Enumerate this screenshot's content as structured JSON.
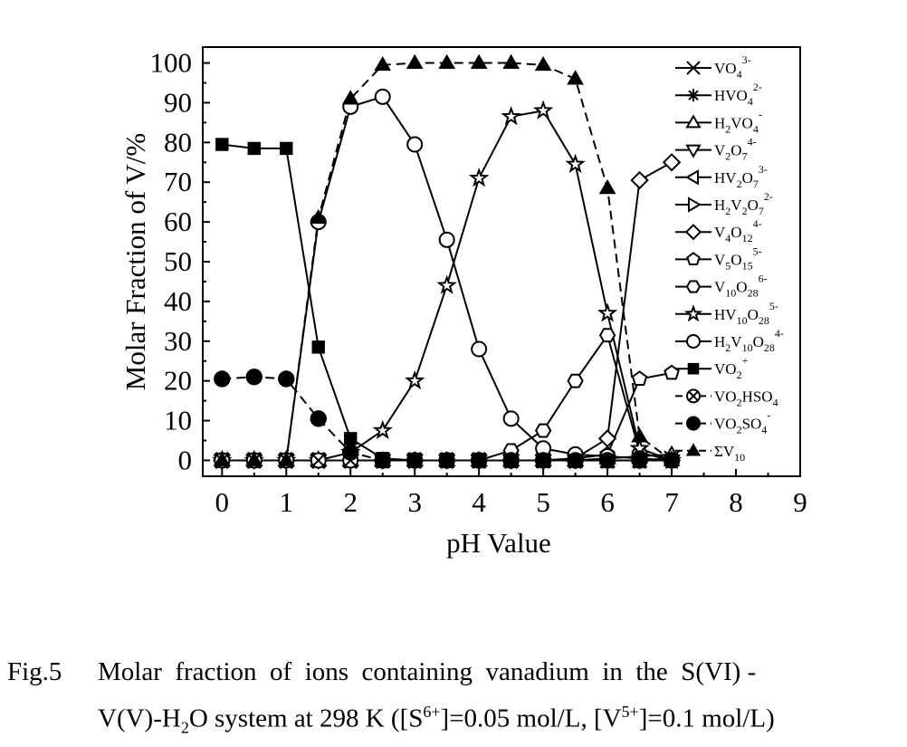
{
  "chart_data": {
    "type": "line",
    "xlabel": "pH Value",
    "ylabel": "Molar Fraction of V/%",
    "xlim": [
      -0.3,
      9
    ],
    "ylim": [
      -4,
      104
    ],
    "xticks": [
      "0",
      "1",
      "2",
      "3",
      "4",
      "5",
      "6",
      "7",
      "8",
      "9"
    ],
    "yticks": [
      "0",
      "10",
      "20",
      "30",
      "40",
      "50",
      "60",
      "70",
      "80",
      "90",
      "100"
    ],
    "grid": false,
    "legend_position": "right",
    "x": [
      0,
      0.5,
      1,
      1.5,
      2,
      2.5,
      3,
      3.5,
      4,
      4.5,
      5,
      5.5,
      6,
      6.5,
      7
    ],
    "series": [
      {
        "name": "VO4 3-",
        "legend": {
          "base": "VO",
          "sub1": "4",
          "sup": "3-"
        },
        "marker": "x",
        "line": "solid",
        "values": [
          0,
          0,
          0,
          0,
          0,
          0,
          0,
          0,
          0,
          0,
          0,
          0,
          0,
          0,
          0.5
        ]
      },
      {
        "name": "HVO4 2-",
        "legend": {
          "base": "HVO",
          "sub1": "4",
          "sup": "2-"
        },
        "marker": "asterisk",
        "line": "solid",
        "values": [
          0,
          0,
          0,
          0,
          0,
          0,
          0,
          0,
          0,
          0,
          0,
          0,
          0,
          0,
          0.5
        ]
      },
      {
        "name": "H2VO4 -",
        "legend": {
          "base": "H",
          "sub1": "2",
          "mid": "VO",
          "sub2": "4",
          "sup": "-"
        },
        "marker": "triangle-up",
        "line": "solid",
        "values": [
          0,
          0,
          0,
          0,
          0,
          0,
          0,
          0,
          0,
          0,
          0,
          0,
          0.5,
          1,
          1.5
        ]
      },
      {
        "name": "V2O7 4-",
        "legend": {
          "base": "V",
          "sub1": "2",
          "mid": "O",
          "sub2": "7",
          "sup": "4-"
        },
        "marker": "triangle-down",
        "line": "solid",
        "values": [
          0,
          0,
          0,
          0,
          0,
          0,
          0,
          0,
          0,
          0,
          0,
          0,
          0,
          0,
          0
        ]
      },
      {
        "name": "HV2O7 3-",
        "legend": {
          "base": "HV",
          "sub1": "2",
          "mid": "O",
          "sub2": "7",
          "sup": "3-"
        },
        "marker": "triangle-left",
        "line": "solid",
        "values": [
          0,
          0,
          0,
          0,
          0,
          0,
          0,
          0,
          0,
          0,
          0,
          0,
          0,
          0,
          0
        ]
      },
      {
        "name": "H2V2O7 2-",
        "legend": {
          "base": "H",
          "sub1": "2",
          "mid": "V",
          "sub2": "2",
          "tail": "O",
          "sub3": "7",
          "sup": "2-"
        },
        "marker": "triangle-right",
        "line": "solid",
        "values": [
          0,
          0,
          0,
          0,
          0,
          0,
          0,
          0,
          0,
          0,
          0,
          0,
          0,
          0,
          0
        ]
      },
      {
        "name": "V4O12 4-",
        "legend": {
          "base": "V",
          "sub1": "4",
          "mid": "O",
          "sub2": "12",
          "sup": "4-"
        },
        "marker": "diamond",
        "line": "solid",
        "values": [
          0,
          0,
          0,
          0,
          0,
          0,
          0,
          0,
          0,
          0,
          0,
          0.5,
          5.5,
          70.5,
          75
        ]
      },
      {
        "name": "V5O15 5-",
        "legend": {
          "base": "V",
          "sub1": "5",
          "mid": "O",
          "sub2": "15",
          "sup": "5-"
        },
        "marker": "pentagon",
        "line": "solid",
        "values": [
          0,
          0,
          0,
          0,
          0,
          0,
          0,
          0,
          0,
          0,
          0,
          0.5,
          1.5,
          20.5,
          22
        ]
      },
      {
        "name": "V10O28 6-",
        "legend": {
          "base": "V",
          "sub1": "10",
          "mid": "O",
          "sub2": "28",
          "sup": "6-"
        },
        "marker": "hexagon",
        "line": "solid",
        "values": [
          0,
          0,
          0,
          0,
          0,
          0,
          0,
          0,
          0,
          2.5,
          7.5,
          20,
          31.5,
          2,
          0
        ]
      },
      {
        "name": "HV10O28 5-",
        "legend": {
          "base": "HV",
          "sub1": "10",
          "mid": "O",
          "sub2": "28",
          "sup": "5-"
        },
        "marker": "star",
        "line": "solid",
        "values": [
          0,
          0,
          0,
          0,
          2,
          7.5,
          20,
          44,
          71,
          86.5,
          88,
          74.5,
          37,
          3,
          0
        ]
      },
      {
        "name": "H2V10O28 4-",
        "legend": {
          "base": "H",
          "sub1": "2",
          "mid": "V",
          "sub2": "10",
          "tail": "O",
          "sub3": "28",
          "sup": "4-"
        },
        "marker": "circle",
        "line": "solid",
        "values": [
          0,
          0,
          0,
          60,
          89,
          91.5,
          79.5,
          55.5,
          28,
          10.5,
          3,
          1.5,
          1,
          0.5,
          0
        ]
      },
      {
        "name": "VO2 +",
        "legend": {
          "base": "VO",
          "sub1": "2",
          "sup": "+"
        },
        "marker": "square-filled",
        "line": "solid",
        "values": [
          79.5,
          78.5,
          78.5,
          28.5,
          5.5,
          0.5,
          0,
          0,
          0,
          0,
          0,
          0,
          0,
          0,
          0
        ]
      },
      {
        "name": "VO2HSO4",
        "legend": {
          "base": "VO",
          "sub1": "2",
          "mid": "HSO",
          "sub2": "4"
        },
        "marker": "circle-x",
        "line": "dashed",
        "values": [
          0,
          0,
          0,
          0,
          0,
          0,
          0,
          0,
          0,
          0,
          0,
          0,
          0,
          0,
          0
        ]
      },
      {
        "name": "VO2SO4 -",
        "legend": {
          "base": "VO",
          "sub1": "2",
          "mid": "SO",
          "sub2": "4",
          "sup": "-"
        },
        "marker": "circle-filled",
        "line": "dashed",
        "values": [
          20.5,
          21,
          20.5,
          10.5,
          2,
          0,
          0,
          0,
          0,
          0,
          0,
          0,
          0,
          0,
          0
        ]
      },
      {
        "name": "ΣV10",
        "legend": {
          "base": "ΣV",
          "sub1": "10"
        },
        "marker": "triangle-filled",
        "line": "dashed",
        "values": [
          0,
          0,
          0,
          61,
          91,
          99.5,
          100,
          100,
          100,
          100,
          99.5,
          96,
          68.5,
          6,
          0
        ]
      }
    ]
  },
  "caption": {
    "fig_no": "Fig.5",
    "line1": "Molar  fraction  of  ions  containing  vanadium  in  the  S(VI) -",
    "line2_a": "V(V)-H",
    "line2_sub_a": "2",
    "line2_b": "O system at 298 K ([S",
    "line2_sup_a": "6+",
    "line2_c": "]=0.05 mol/L, [V",
    "line2_sup_b": "5+",
    "line2_d": "]=0.1 mol/L)"
  }
}
